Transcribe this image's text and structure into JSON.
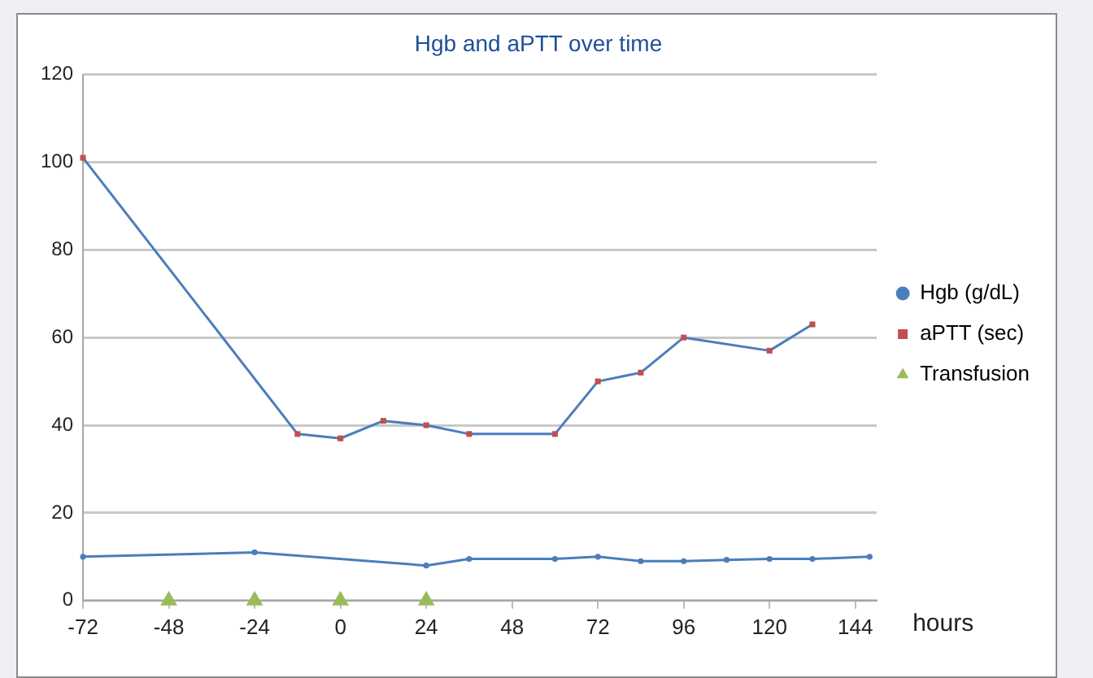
{
  "chart_data": {
    "type": "line",
    "title": "Hgb and aPTT over time",
    "xlabel": "hours",
    "xlim": [
      -72,
      150
    ],
    "xticks": [
      -72,
      -48,
      -24,
      0,
      24,
      48,
      72,
      96,
      120,
      144
    ],
    "ylim": [
      0,
      120
    ],
    "yticks": [
      0,
      20,
      40,
      60,
      80,
      100,
      120
    ],
    "grid": "y",
    "legend": "right",
    "series": [
      {
        "name": "Hgb (g/dL)",
        "type": "line",
        "color": "#4a7ebb",
        "marker": "circle",
        "x": [
          -72,
          -24,
          24,
          36,
          60,
          72,
          84,
          96,
          108,
          120,
          132,
          148
        ],
        "values": [
          10,
          11,
          8,
          9.5,
          9.5,
          10,
          9,
          9,
          9.3,
          9.5,
          9.5,
          10
        ]
      },
      {
        "name": "aPTT (sec)",
        "type": "line",
        "color": "#4a7ebb",
        "colors": [
          "#c0504d",
          "#c0504d",
          "#c0504d",
          "#c0504d",
          "#c0504d",
          "#c0504d",
          "#c0504d",
          "#c0504d",
          "#c0504d",
          "#c0504d",
          "#c0504d",
          "#c0504d"
        ],
        "marker": "square",
        "x": [
          -72,
          -12,
          0,
          12,
          24,
          36,
          60,
          72,
          84,
          96,
          120,
          132
        ],
        "values": [
          101,
          38,
          37,
          41,
          40,
          38,
          38,
          50,
          52,
          60,
          57,
          63
        ]
      },
      {
        "name": "Transfusion",
        "type": "scatter",
        "color": "#9bbb59",
        "marker": "triangle",
        "x": [
          -48,
          -24,
          0,
          24
        ],
        "values": [
          0,
          0,
          0,
          0
        ]
      }
    ]
  }
}
